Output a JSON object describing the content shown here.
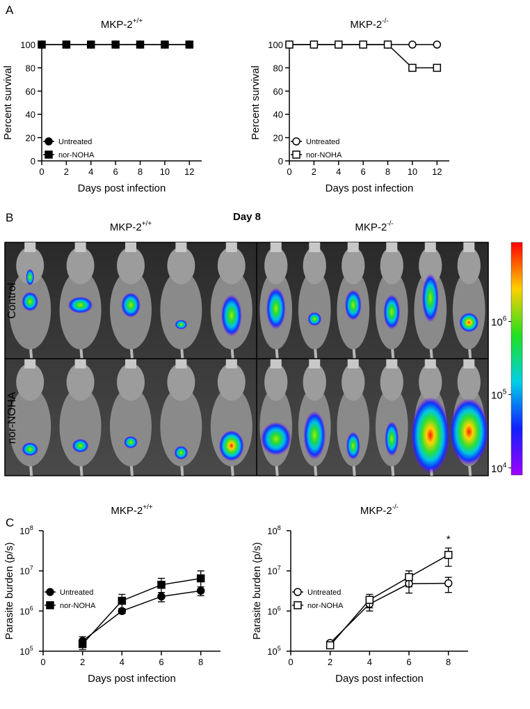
{
  "panel_labels": [
    "A",
    "B",
    "C"
  ],
  "chart_data": [
    {
      "type": "line",
      "title": "MKP-2",
      "title_sup": "+/+",
      "x_label": "Days post infection",
      "y_label": "Percent survival",
      "x": [
        0,
        2,
        4,
        6,
        8,
        10,
        12
      ],
      "xlim": [
        0,
        13
      ],
      "xticks": [
        0,
        2,
        4,
        6,
        8,
        10,
        12
      ],
      "ylim": [
        0,
        100
      ],
      "yticks": [
        0,
        20,
        40,
        60,
        80,
        100
      ],
      "legend": "lower left",
      "series": [
        {
          "name": "Untreated",
          "color": "#000000",
          "marker": "circle",
          "filled": true,
          "values": [
            100,
            100,
            100,
            100,
            100,
            100,
            100
          ]
        },
        {
          "name": "nor-NOHA",
          "color": "#000000",
          "marker": "square",
          "filled": true,
          "values": [
            100,
            100,
            100,
            100,
            100,
            100,
            100
          ]
        }
      ]
    },
    {
      "type": "line",
      "title": "MKP-2",
      "title_sup": "-/-",
      "x_label": "Days post infection",
      "y_label": "Percent survival",
      "x": [
        0,
        2,
        4,
        6,
        8,
        10,
        12
      ],
      "xlim": [
        0,
        13
      ],
      "xticks": [
        0,
        2,
        4,
        6,
        8,
        10,
        12
      ],
      "ylim": [
        0,
        100
      ],
      "yticks": [
        0,
        20,
        40,
        60,
        80,
        100
      ],
      "legend": "lower left",
      "series": [
        {
          "name": "Untreated",
          "color": "#000000",
          "marker": "circle",
          "filled": false,
          "values": [
            100,
            100,
            100,
            100,
            100,
            100,
            100
          ]
        },
        {
          "name": "nor-NOHA",
          "color": "#000000",
          "marker": "square",
          "filled": false,
          "values": [
            100,
            100,
            100,
            100,
            100,
            80,
            80
          ]
        }
      ]
    },
    {
      "type": "line",
      "title": "MKP-2",
      "title_sup": "+/+",
      "x_label": "Days post infection",
      "y_label": "Parasite burden (p/s)",
      "x": [
        2,
        4,
        6,
        8
      ],
      "xlim": [
        0,
        9
      ],
      "xticks": [
        0,
        2,
        4,
        6,
        8
      ],
      "log_y": true,
      "ylim": [
        100000,
        100000000
      ],
      "yticks": [
        {
          "value": 100000,
          "label": "10",
          "exponent": "5"
        },
        {
          "value": 1000000,
          "label": "10",
          "exponent": "6"
        },
        {
          "value": 10000000,
          "label": "10",
          "exponent": "7"
        },
        {
          "value": 100000000,
          "label": "10",
          "exponent": "8"
        }
      ],
      "legend": "upper left",
      "series": [
        {
          "name": "Untreated",
          "color": "#000000",
          "marker": "circle",
          "filled": true,
          "values": [
            180000,
            1000000,
            2300000,
            3200000
          ],
          "errors": [
            50000,
            150000,
            600000,
            800000
          ]
        },
        {
          "name": "nor-NOHA",
          "color": "#000000",
          "marker": "square",
          "filled": true,
          "values": [
            150000,
            1800000,
            4500000,
            6500000
          ],
          "errors": [
            40000,
            800000,
            2000000,
            3500000
          ]
        }
      ]
    },
    {
      "type": "line",
      "title": "MKP-2",
      "title_sup": "-/-",
      "x_label": "Days post infection",
      "y_label": "Parasite burden (p/s)",
      "x": [
        2,
        4,
        6,
        8
      ],
      "xlim": [
        0,
        9
      ],
      "xticks": [
        0,
        2,
        4,
        6,
        8
      ],
      "log_y": true,
      "ylim": [
        100000,
        100000000
      ],
      "yticks": [
        {
          "value": 100000,
          "label": "10",
          "exponent": "5"
        },
        {
          "value": 1000000,
          "label": "10",
          "exponent": "6"
        },
        {
          "value": 10000000,
          "label": "10",
          "exponent": "7"
        },
        {
          "value": 100000000,
          "label": "10",
          "exponent": "8"
        }
      ],
      "legend": "upper left",
      "annotation": "*",
      "series": [
        {
          "name": "Untreated",
          "color": "#000000",
          "marker": "circle",
          "filled": false,
          "values": [
            160000,
            1500000,
            4800000,
            4900000
          ],
          "errors": [
            20000,
            500000,
            2000000,
            2000000
          ]
        },
        {
          "name": "nor-NOHA",
          "color": "#000000",
          "marker": "square",
          "filled": false,
          "values": [
            140000,
            1900000,
            7000000,
            25000000
          ],
          "errors": [
            20000,
            700000,
            3000000,
            12000000
          ]
        }
      ]
    }
  ],
  "panel_b": {
    "title": "Day 8",
    "col_titles": [
      {
        "text": "MKP-2",
        "sup": "+/+"
      },
      {
        "text": "MKP-2",
        "sup": "-/-"
      }
    ],
    "row_titles": [
      "Control",
      "nor-NOHA"
    ],
    "colorbar_lim": [
      8000,
      12000000
    ],
    "colorbar_ticks": [
      {
        "value": 1000000,
        "label": "10",
        "exponent": "6"
      },
      {
        "value": 100000,
        "label": "10",
        "exponent": "5"
      },
      {
        "value": 10000,
        "label": "10",
        "exponent": "4"
      }
    ]
  }
}
